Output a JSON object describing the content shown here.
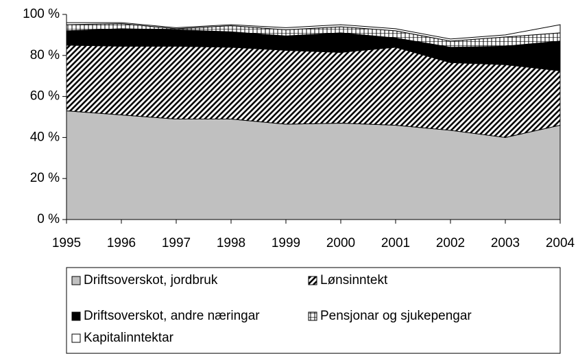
{
  "chart_data": {
    "type": "stacked_area",
    "categories": [
      "1995",
      "1996",
      "1997",
      "1998",
      "1999",
      "2000",
      "2001",
      "2002",
      "2003",
      "2004"
    ],
    "series": [
      {
        "name": "Driftsoverskot, jordbruk",
        "color": "#c0c0c0",
        "pattern": "solid",
        "values": [
          53,
          51,
          49,
          49,
          46.5,
          47,
          46,
          43.5,
          40,
          46
        ]
      },
      {
        "name": "Lønsinntekt",
        "color": "#000000",
        "pattern": "diagonal",
        "values": [
          32,
          33.5,
          35.5,
          35,
          36,
          34.5,
          38,
          33,
          35.5,
          26.5
        ]
      },
      {
        "name": "Driftsoverskot, andre næringar",
        "color": "#000000",
        "pattern": "solid",
        "values": [
          7,
          8.5,
          8,
          7.5,
          7,
          9.5,
          4.5,
          7.5,
          9,
          14.5
        ]
      },
      {
        "name": "Pensjonar og sjukepengar",
        "color": "#000000",
        "pattern": "grid",
        "values": [
          3,
          2.5,
          0.5,
          3,
          3,
          3,
          3.5,
          3,
          4.5,
          4
        ]
      },
      {
        "name": "Kapitalinntektar",
        "color": "#ffffff",
        "pattern": "solid",
        "values": [
          1,
          0.5,
          0.5,
          0.5,
          1,
          1,
          1,
          1,
          1,
          4
        ]
      }
    ],
    "ylim": [
      0,
      100
    ],
    "yticks": [
      {
        "value": 0,
        "label": "0 %"
      },
      {
        "value": 20,
        "label": "20 %"
      },
      {
        "value": 40,
        "label": "40 %"
      },
      {
        "value": 60,
        "label": "60 %"
      },
      {
        "value": 80,
        "label": "80 %"
      },
      {
        "value": 100,
        "label": "100 %"
      }
    ],
    "legend": "bottom"
  }
}
